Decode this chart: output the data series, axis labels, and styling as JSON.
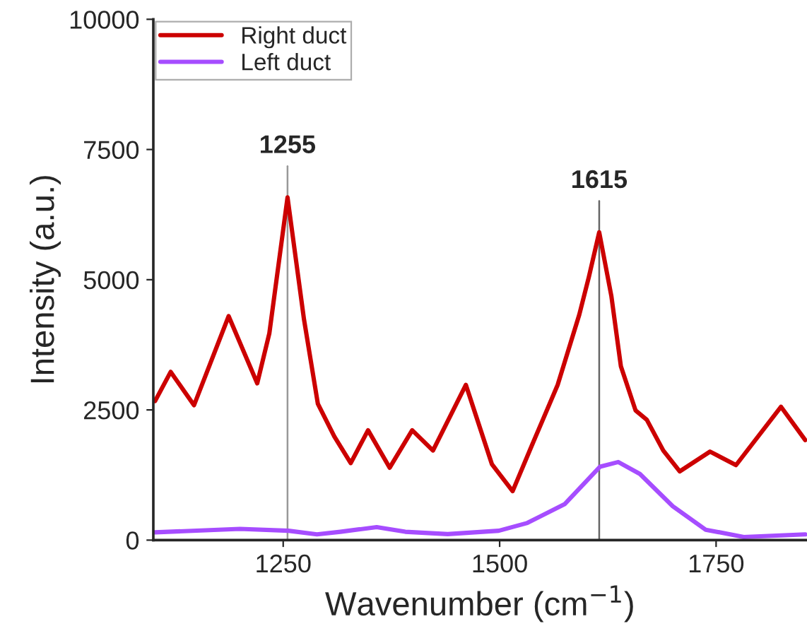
{
  "chart_data": {
    "type": "line",
    "xlabel": "Wavenumber (cm$^{−1}$)",
    "ylabel": "Intensity (a.u.)",
    "xlim": [
      1100,
      1855
    ],
    "xticks": [
      1250,
      1500,
      1750
    ],
    "ylim": [
      0,
      10000
    ],
    "yticks": [
      0,
      2500,
      5000,
      7500,
      10000
    ],
    "grid": false,
    "legend": "top left",
    "line_style": "solid",
    "marker": "none",
    "series": [
      {
        "name": "Right duct",
        "color": "#cc0000",
        "x": [
          1102,
          1120,
          1147,
          1187,
          1220,
          1234,
          1255,
          1274,
          1290,
          1309,
          1328,
          1348,
          1373,
          1399,
          1423,
          1461,
          1491,
          1515,
          1537,
          1567,
          1592,
          1603,
          1615,
          1629,
          1640,
          1657,
          1670,
          1689,
          1708,
          1743,
          1773,
          1825,
          1853
        ],
        "values": [
          2670,
          3230,
          2590,
          4300,
          3010,
          3970,
          6580,
          4240,
          2620,
          1990,
          1480,
          2110,
          1390,
          2110,
          1720,
          2980,
          1460,
          940,
          1810,
          2980,
          4330,
          5050,
          5910,
          4690,
          3340,
          2490,
          2310,
          1720,
          1320,
          1700,
          1440,
          2560,
          1920
        ]
      },
      {
        "name": "Left duct",
        "color": "#a64dff",
        "x": [
          1102,
          1200,
          1256,
          1289,
          1316,
          1358,
          1391,
          1440,
          1499,
          1532,
          1575,
          1616,
          1637,
          1662,
          1700,
          1738,
          1782,
          1853
        ],
        "values": [
          150,
          215,
          180,
          110,
          160,
          250,
          160,
          115,
          180,
          330,
          690,
          1410,
          1500,
          1270,
          650,
          200,
          60,
          110
        ]
      }
    ],
    "ref_lines": [
      {
        "axis": "x",
        "value": 1255,
        "label": "1255",
        "color": "#999999"
      },
      {
        "axis": "x",
        "value": 1615,
        "label": "1615",
        "color": "#666666"
      }
    ]
  }
}
